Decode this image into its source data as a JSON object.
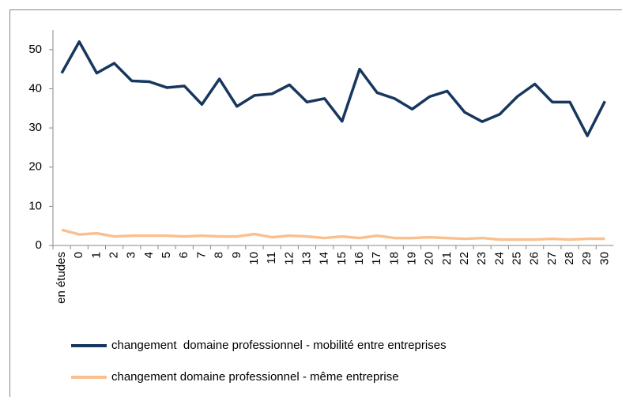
{
  "chart_data": {
    "type": "line",
    "categories": [
      "en études",
      "0",
      "1",
      "2",
      "3",
      "4",
      "5",
      "6",
      "7",
      "8",
      "9",
      "10",
      "11",
      "12",
      "13",
      "14",
      "15",
      "16",
      "17",
      "18",
      "19",
      "20",
      "21",
      "22",
      "23",
      "24",
      "25",
      "26",
      "27",
      "28",
      "29",
      "30"
    ],
    "series": [
      {
        "name": "changement  domaine professionnel - mobilité entre entreprises",
        "color": "#17375e",
        "values": [
          44,
          52,
          44,
          46.5,
          42,
          41.8,
          40.3,
          40.7,
          36,
          42.5,
          35.5,
          38.3,
          38.7,
          41,
          36.6,
          37.5,
          31.7,
          45,
          39,
          37.5,
          34.8,
          38,
          39.4,
          34,
          31.6,
          33.5,
          38,
          41.2,
          36.6,
          36.6,
          28,
          36.8
        ]
      },
      {
        "name": "changement domaine professionnel - même entreprise",
        "color": "#fac090",
        "values": [
          4,
          2.8,
          3.1,
          2.3,
          2.5,
          2.5,
          2.5,
          2.3,
          2.5,
          2.3,
          2.3,
          2.9,
          2.1,
          2.5,
          2.3,
          1.9,
          2.3,
          1.9,
          2.5,
          1.9,
          1.9,
          2.1,
          1.9,
          1.7,
          1.9,
          1.5,
          1.5,
          1.5,
          1.7,
          1.5,
          1.7,
          1.7
        ]
      }
    ],
    "ylim": [
      0,
      55
    ],
    "yticks": [
      0,
      10,
      20,
      30,
      40,
      50
    ],
    "grid": false,
    "legend": "bottom"
  }
}
